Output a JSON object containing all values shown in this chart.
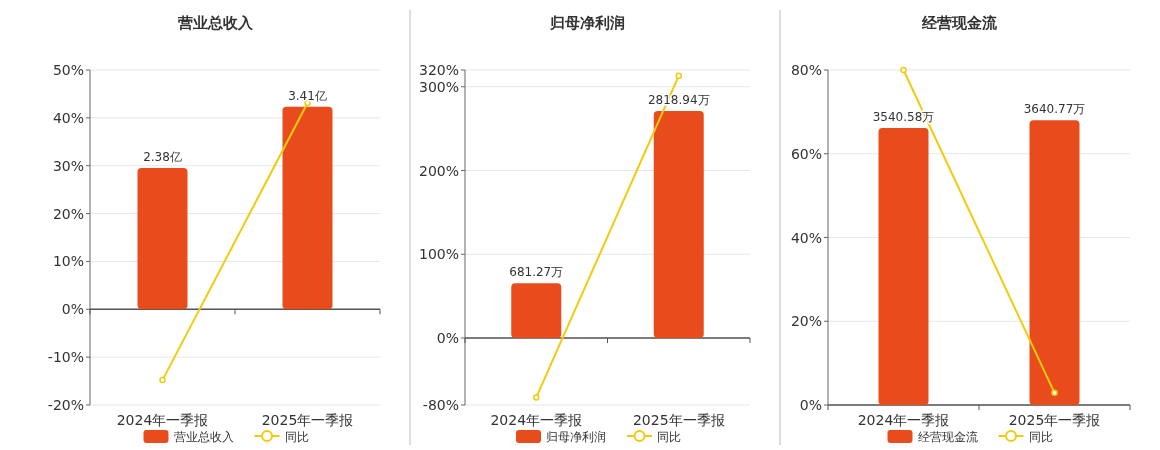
{
  "chart_data": [
    {
      "type": "bar",
      "title": "营业总收入",
      "categories": [
        "2024年一季报",
        "2025年一季报"
      ],
      "grid": "y",
      "legend": "bottom",
      "ylim": [
        -20,
        50
      ],
      "yticks": [
        {
          "value": -20,
          "label": "-20%"
        },
        {
          "value": -10,
          "label": "-10%"
        },
        {
          "value": 0,
          "label": "0%"
        },
        {
          "value": 10,
          "label": "10%"
        },
        {
          "value": 20,
          "label": "20%"
        },
        {
          "value": 30,
          "label": "30%"
        },
        {
          "value": 40,
          "label": "40%"
        },
        {
          "value": 50,
          "label": "50%"
        }
      ],
      "y2lim": [
        -1.61,
        4.03
      ],
      "series": [
        {
          "name": "营业总收入",
          "axis": "y2",
          "color": "#e84c1c",
          "values": [
            2.38,
            3.41
          ],
          "value_labels": [
            "2.38亿",
            "3.41亿"
          ]
        },
        {
          "name": "同比",
          "type": "line",
          "color": "#f2cb0c",
          "marker": "circle",
          "values": [
            -14.8,
            43.1
          ]
        }
      ]
    },
    {
      "type": "bar",
      "title": "归母净利润",
      "categories": [
        "2024年一季报",
        "2025年一季报"
      ],
      "grid": "y",
      "legend": "bottom",
      "ylim": [
        -80,
        320
      ],
      "yticks": [
        {
          "value": -80,
          "label": "-80%"
        },
        {
          "value": 0,
          "label": "0%"
        },
        {
          "value": 100,
          "label": "100%"
        },
        {
          "value": 200,
          "label": "200%"
        },
        {
          "value": 300,
          "label": "300%"
        },
        {
          "value": 320,
          "label": "320%"
        }
      ],
      "y2lim": [
        -832,
        3329
      ],
      "series": [
        {
          "name": "归母净利润",
          "axis": "y2",
          "color": "#e84c1c",
          "values": [
            681.27,
            2818.94
          ],
          "value_labels": [
            "681.27万",
            "2818.94万"
          ]
        },
        {
          "name": "同比",
          "type": "line",
          "color": "#f2cb0c",
          "marker": "circle",
          "values": [
            -71,
            313
          ]
        }
      ]
    },
    {
      "type": "bar",
      "title": "经营现金流",
      "categories": [
        "2024年一季报",
        "2025年一季报"
      ],
      "grid": "y",
      "legend": "bottom",
      "ylim": [
        0,
        80
      ],
      "yticks": [
        {
          "value": 0,
          "label": "0%"
        },
        {
          "value": 20,
          "label": "20%"
        },
        {
          "value": 40,
          "label": "40%"
        },
        {
          "value": 60,
          "label": "60%"
        },
        {
          "value": 80,
          "label": "80%"
        }
      ],
      "y2lim": [
        0,
        4283
      ],
      "series": [
        {
          "name": "经营现金流",
          "axis": "y2",
          "color": "#e84c1c",
          "values": [
            3540.58,
            3640.77
          ],
          "value_labels": [
            "3540.58万",
            "3640.77万"
          ]
        },
        {
          "name": "同比",
          "type": "line",
          "color": "#f2cb0c",
          "marker": "circle",
          "values": [
            80,
            2.9
          ]
        }
      ]
    }
  ]
}
